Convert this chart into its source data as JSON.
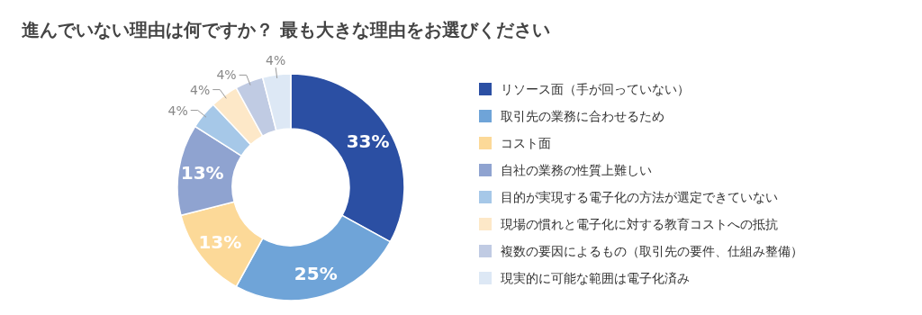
{
  "chart_data": {
    "type": "donut",
    "title": "進んでいない理由は何ですか？ 最も大きな理由をお選びください",
    "categories": [
      "リソース面（手が回っていない）",
      "取引先の業務に合わせるため",
      "コスト面",
      "自社の業務の性質上難しい",
      "目的が実現する電子化の方法が選定できていない",
      "現場の慣れと電子化に対する教育コストへの抵抗",
      "複数の要因によるもの（取引先の要件、仕組み整備）",
      "現実的に可能な範囲は電子化済み"
    ],
    "values": [
      33,
      25,
      13,
      13,
      4,
      4,
      4,
      4
    ],
    "value_labels": [
      "33%",
      "25%",
      "13%",
      "13%",
      "4%",
      "4%",
      "4%",
      "4%"
    ],
    "colors": [
      "#2b4fa3",
      "#6fa4d8",
      "#fcd998",
      "#8fa3d0",
      "#a6c8e8",
      "#fde8c8",
      "#c0cbe3",
      "#dde8f5"
    ],
    "legend": "right"
  }
}
